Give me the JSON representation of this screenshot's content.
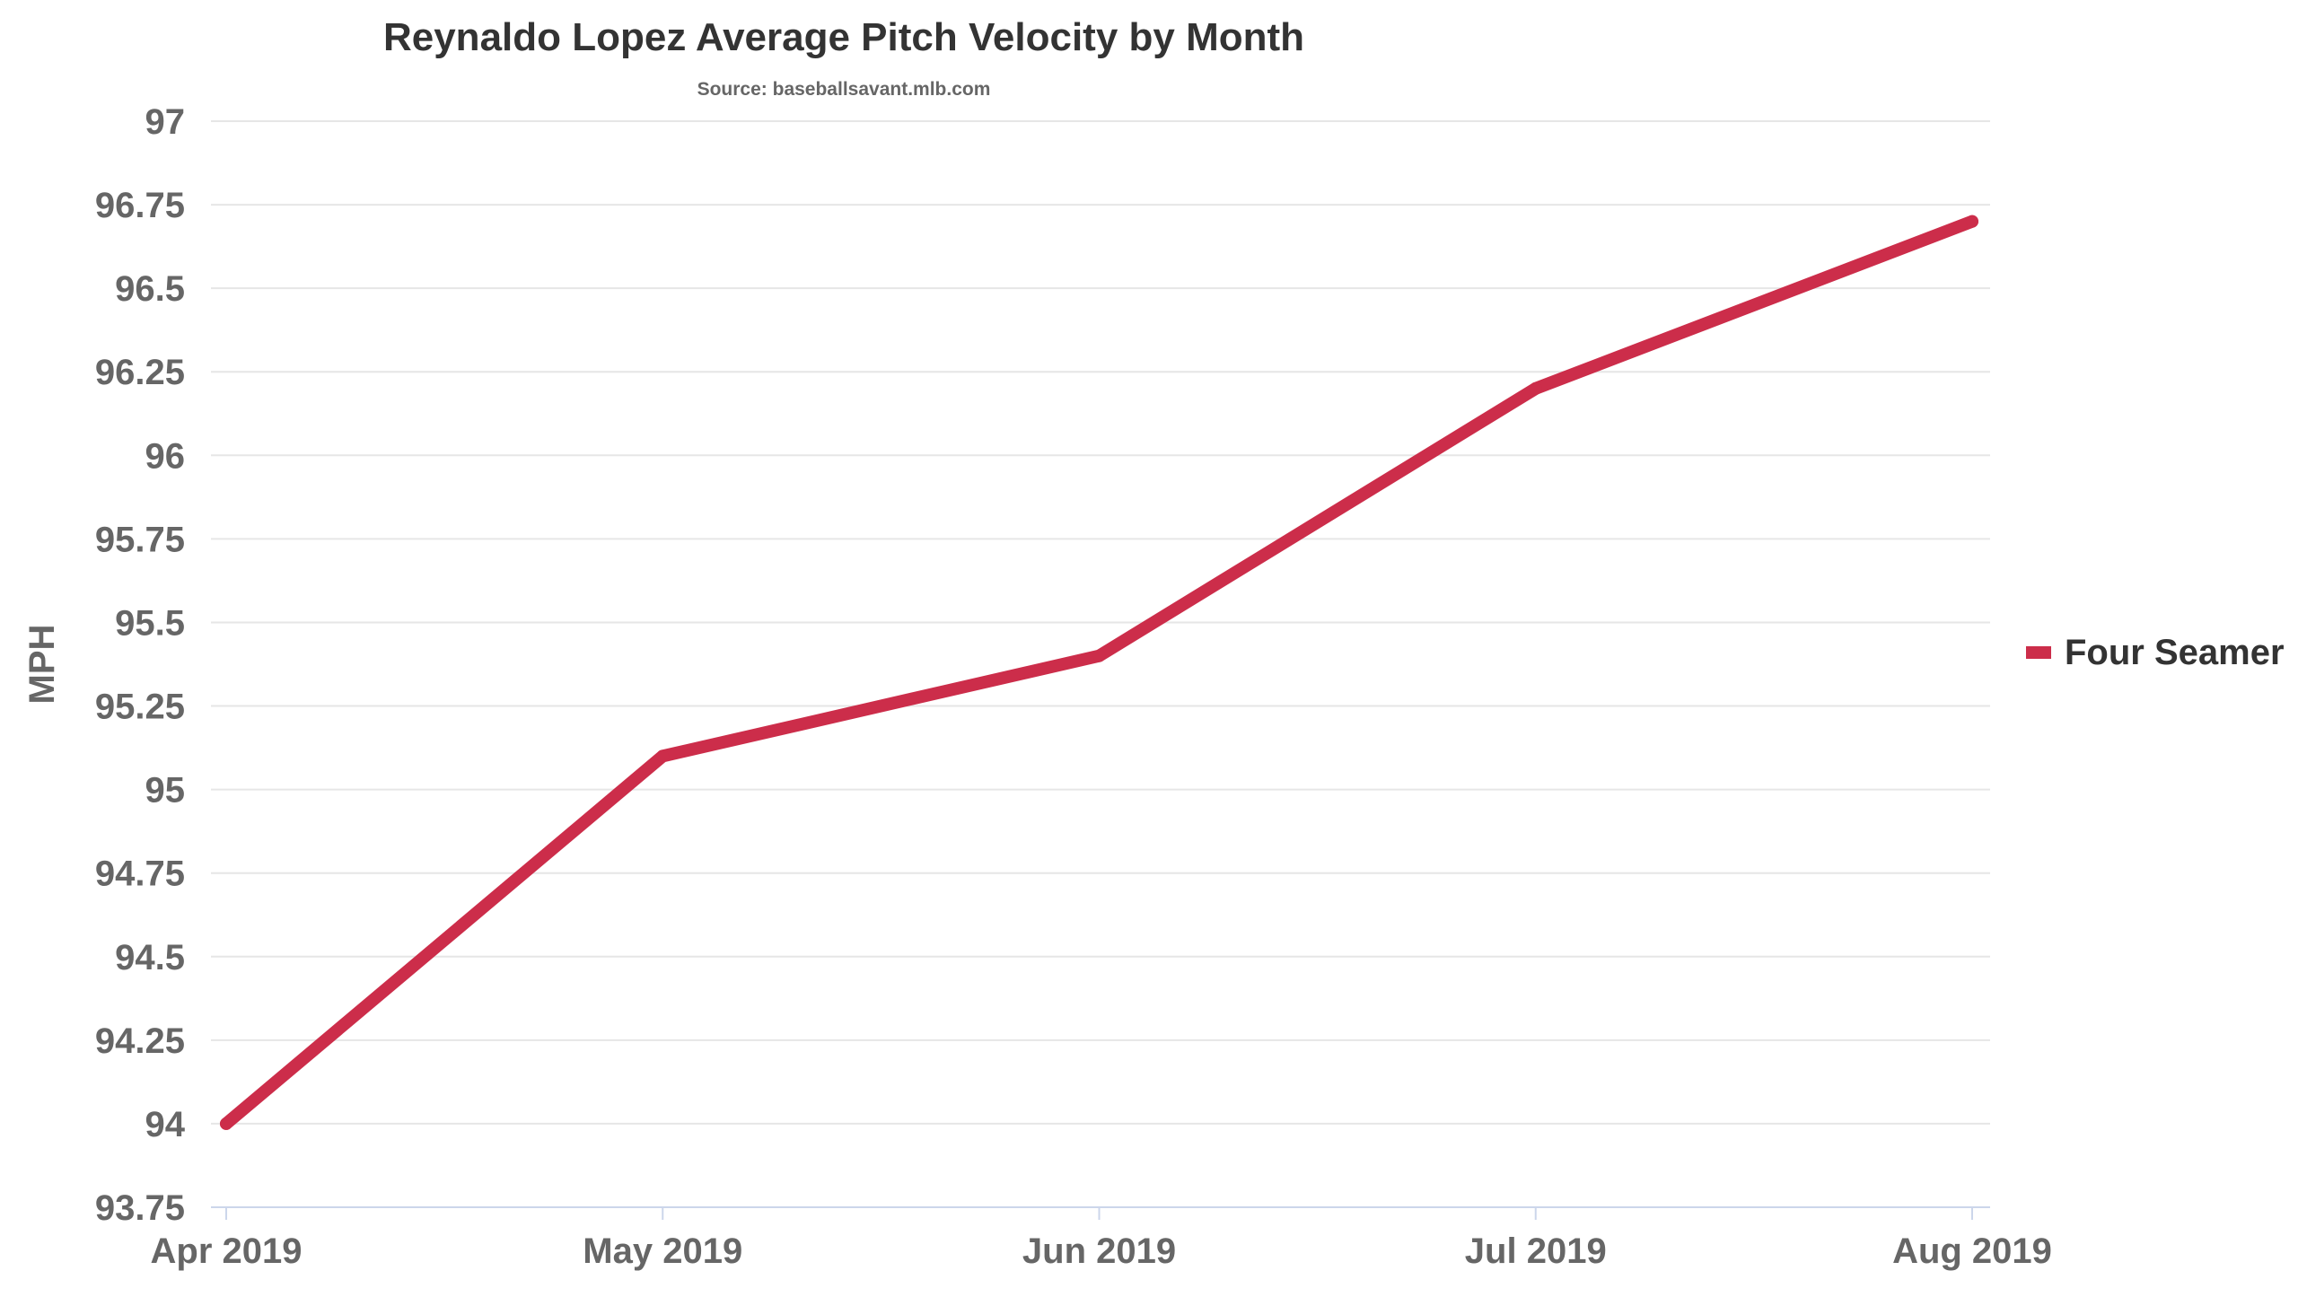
{
  "chart_data": {
    "type": "line",
    "title": "Reynaldo Lopez Average Pitch Velocity by Month",
    "subtitle": "Source: baseballsavant.mlb.com",
    "xlabel": "",
    "ylabel": "MPH",
    "categories": [
      "Apr 2019",
      "May 2019",
      "Jun 2019",
      "Jul 2019",
      "Aug 2019"
    ],
    "series": [
      {
        "name": "Four Seamer",
        "color": "#cc2d4a",
        "values": [
          94.0,
          95.1,
          95.4,
          96.2,
          96.7
        ]
      }
    ],
    "ylim": [
      93.75,
      97
    ],
    "yticks": [
      {
        "value": 93.75,
        "label": "93.75"
      },
      {
        "value": 94,
        "label": "94"
      },
      {
        "value": 94.25,
        "label": "94.25"
      },
      {
        "value": 94.5,
        "label": "94.5"
      },
      {
        "value": 94.75,
        "label": "94.75"
      },
      {
        "value": 95,
        "label": "95"
      },
      {
        "value": 95.25,
        "label": "95.25"
      },
      {
        "value": 95.5,
        "label": "95.5"
      },
      {
        "value": 95.75,
        "label": "95.75"
      },
      {
        "value": 96,
        "label": "96"
      },
      {
        "value": 96.25,
        "label": "96.25"
      },
      {
        "value": 96.5,
        "label": "96.5"
      },
      {
        "value": 96.75,
        "label": "96.75"
      },
      {
        "value": 97,
        "label": "97"
      }
    ],
    "grid": true,
    "legend_position": "right"
  },
  "colors": {
    "title": "#333333",
    "subtitle": "#666666",
    "tick_label": "#666666",
    "grid": "#e6e6e6",
    "axis": "#ccd6eb"
  }
}
